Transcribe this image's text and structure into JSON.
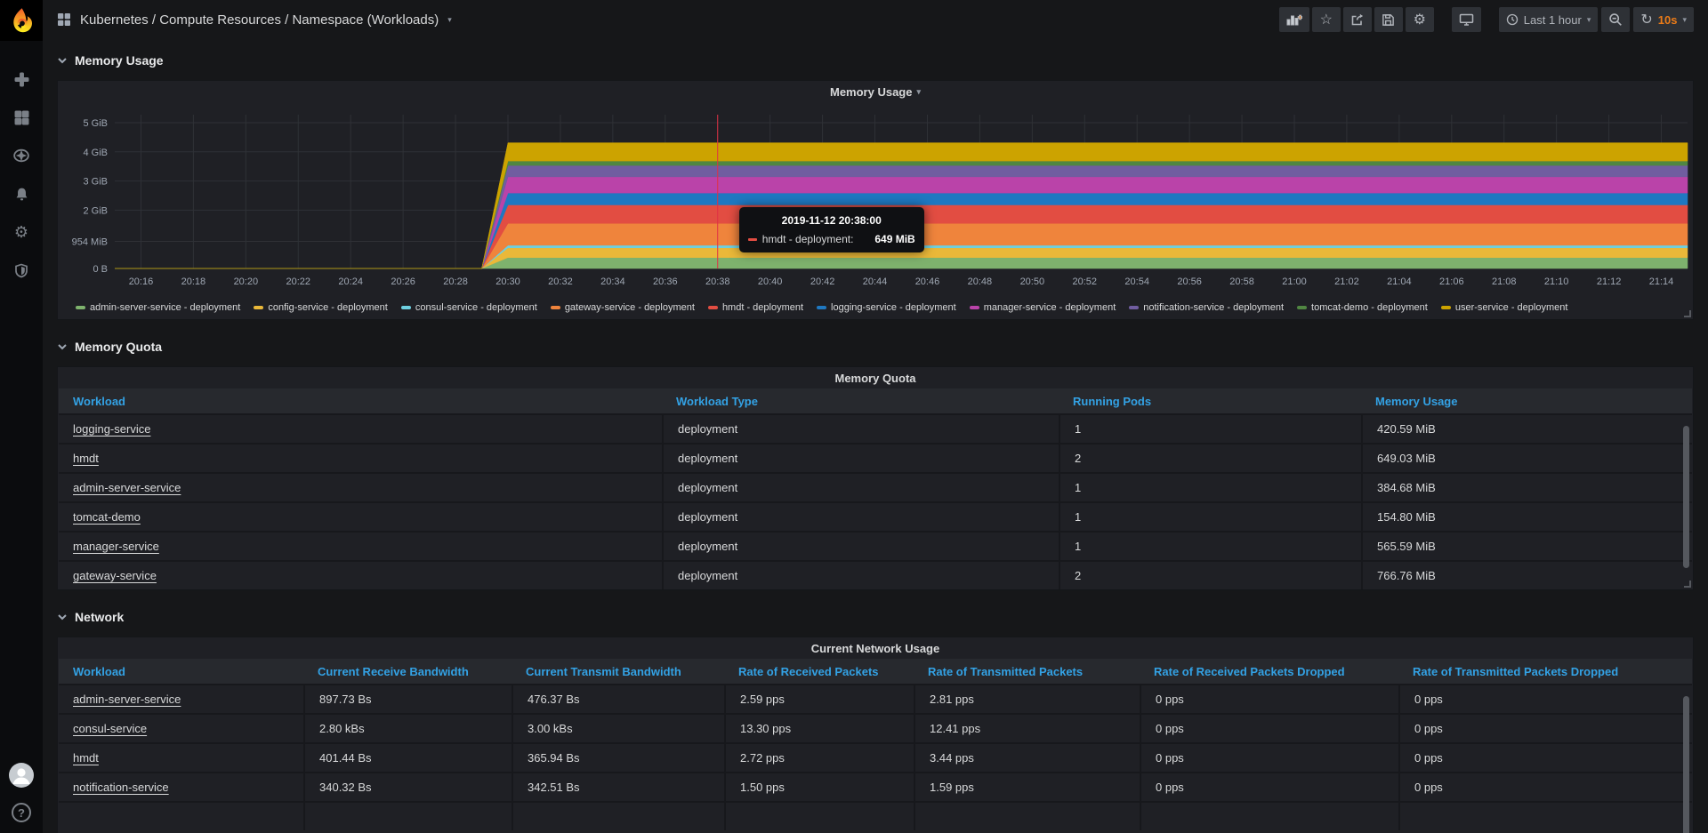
{
  "nav": {
    "title": "Kubernetes / Compute Resources / Namespace (Workloads)",
    "toolbar": {
      "icons": [
        "add-panel",
        "star",
        "share",
        "save",
        "settings",
        "cycle-view-mode"
      ],
      "time_range": "Last 1 hour",
      "zoom_out": "zoom-out",
      "refresh_interval": "10s"
    }
  },
  "sidebar": {
    "icons": [
      "grafana-logo",
      "create-plus",
      "dashboards-grid",
      "explore-compass",
      "alerting-bell",
      "configuration-gear",
      "server-admin-shield",
      "user-avatar",
      "help"
    ]
  },
  "sections": [
    {
      "label": "Memory Usage"
    },
    {
      "label": "Memory Quota"
    },
    {
      "label": "Network"
    }
  ],
  "chart_data": {
    "type": "area",
    "stacked": true,
    "title": "Memory Usage",
    "x_range": {
      "start": "20:15",
      "end": "21:15"
    },
    "y_ticks": [
      {
        "label": "0 B",
        "gib": 0
      },
      {
        "label": "954 MiB",
        "gib": 0.93
      },
      {
        "label": "2 GiB",
        "gib": 2
      },
      {
        "label": "3 GiB",
        "gib": 3
      },
      {
        "label": "4 GiB",
        "gib": 4
      },
      {
        "label": "5 GiB",
        "gib": 5
      }
    ],
    "x_ticks": [
      {
        "label": "20:16",
        "min": 1
      },
      {
        "label": "20:18",
        "min": 3
      },
      {
        "label": "20:20",
        "min": 5
      },
      {
        "label": "20:22",
        "min": 7
      },
      {
        "label": "20:24",
        "min": 9
      },
      {
        "label": "20:26",
        "min": 11
      },
      {
        "label": "20:28",
        "min": 13
      },
      {
        "label": "20:30",
        "min": 15
      },
      {
        "label": "20:32",
        "min": 17
      },
      {
        "label": "20:34",
        "min": 19
      },
      {
        "label": "20:36",
        "min": 21
      },
      {
        "label": "20:38",
        "min": 23
      },
      {
        "label": "20:40",
        "min": 25
      },
      {
        "label": "20:42",
        "min": 27
      },
      {
        "label": "20:44",
        "min": 29
      },
      {
        "label": "20:46",
        "min": 31
      },
      {
        "label": "20:48",
        "min": 33
      },
      {
        "label": "20:50",
        "min": 35
      },
      {
        "label": "20:52",
        "min": 37
      },
      {
        "label": "20:54",
        "min": 39
      },
      {
        "label": "20:56",
        "min": 41
      },
      {
        "label": "20:58",
        "min": 43
      },
      {
        "label": "21:00",
        "min": 45
      },
      {
        "label": "21:02",
        "min": 47
      },
      {
        "label": "21:04",
        "min": 49
      },
      {
        "label": "21:06",
        "min": 51
      },
      {
        "label": "21:08",
        "min": 53
      },
      {
        "label": "21:10",
        "min": 55
      },
      {
        "label": "21:12",
        "min": 57
      },
      {
        "label": "21:14",
        "min": 59
      }
    ],
    "rise_start_min": 14,
    "rise_end_min": 15,
    "series": [
      {
        "name": "admin-server-service - deployment",
        "color": "#7EB26D",
        "steady_mib": 385
      },
      {
        "name": "config-service - deployment",
        "color": "#EAB839",
        "steady_mib": 340
      },
      {
        "name": "consul-service - deployment",
        "color": "#6ED0E0",
        "steady_mib": 90
      },
      {
        "name": "gateway-service - deployment",
        "color": "#EF843C",
        "steady_mib": 767
      },
      {
        "name": "hmdt - deployment",
        "color": "#E24D42",
        "steady_mib": 649
      },
      {
        "name": "logging-service - deployment",
        "color": "#1F78C1",
        "steady_mib": 421
      },
      {
        "name": "manager-service - deployment",
        "color": "#BA43A9",
        "steady_mib": 566
      },
      {
        "name": "notification-service - deployment",
        "color": "#705DA0",
        "steady_mib": 400
      },
      {
        "name": "tomcat-demo - deployment",
        "color": "#508642",
        "steady_mib": 155
      },
      {
        "name": "user-service - deployment",
        "color": "#CCA300",
        "steady_mib": 640
      }
    ],
    "tooltip": {
      "time": "2019-11-12 20:38:00",
      "series_label": "hmdt - deployment:",
      "value": "649 MiB",
      "color": "#E24D42",
      "at_min": 23
    },
    "crosshair_color": "#e02f44",
    "legend_position": "bottom",
    "grid": true
  },
  "memory_quota_table": {
    "panel_title": "Memory Quota",
    "columns": [
      "Workload",
      "Workload Type",
      "Running Pods",
      "Memory Usage"
    ],
    "rows": [
      [
        "logging-service",
        "deployment",
        "1",
        "420.59 MiB"
      ],
      [
        "hmdt",
        "deployment",
        "2",
        "649.03 MiB"
      ],
      [
        "admin-server-service",
        "deployment",
        "1",
        "384.68 MiB"
      ],
      [
        "tomcat-demo",
        "deployment",
        "1",
        "154.80 MiB"
      ],
      [
        "manager-service",
        "deployment",
        "1",
        "565.59 MiB"
      ],
      [
        "gateway-service",
        "deployment",
        "2",
        "766.76 MiB"
      ]
    ]
  },
  "network_table": {
    "panel_title": "Current Network Usage",
    "columns": [
      "Workload",
      "Current Receive Bandwidth",
      "Current Transmit Bandwidth",
      "Rate of Received Packets",
      "Rate of Transmitted Packets",
      "Rate of Received Packets Dropped",
      "Rate of Transmitted Packets Dropped"
    ],
    "rows": [
      [
        "admin-server-service",
        "897.73 Bs",
        "476.37 Bs",
        "2.59 pps",
        "2.81 pps",
        "0 pps",
        "0 pps"
      ],
      [
        "consul-service",
        "2.80 kBs",
        "3.00 kBs",
        "13.30 pps",
        "12.41 pps",
        "0 pps",
        "0 pps"
      ],
      [
        "hmdt",
        "401.44 Bs",
        "365.94 Bs",
        "2.72 pps",
        "3.44 pps",
        "0 pps",
        "0 pps"
      ],
      [
        "notification-service",
        "340.32 Bs",
        "342.51 Bs",
        "1.50 pps",
        "1.59 pps",
        "0 pps",
        "0 pps"
      ]
    ]
  },
  "colors": {
    "header_blue": "#33a2e5",
    "accent_orange": "#eb7b18",
    "panel_bg": "#1f2025",
    "page_bg": "#161719"
  }
}
